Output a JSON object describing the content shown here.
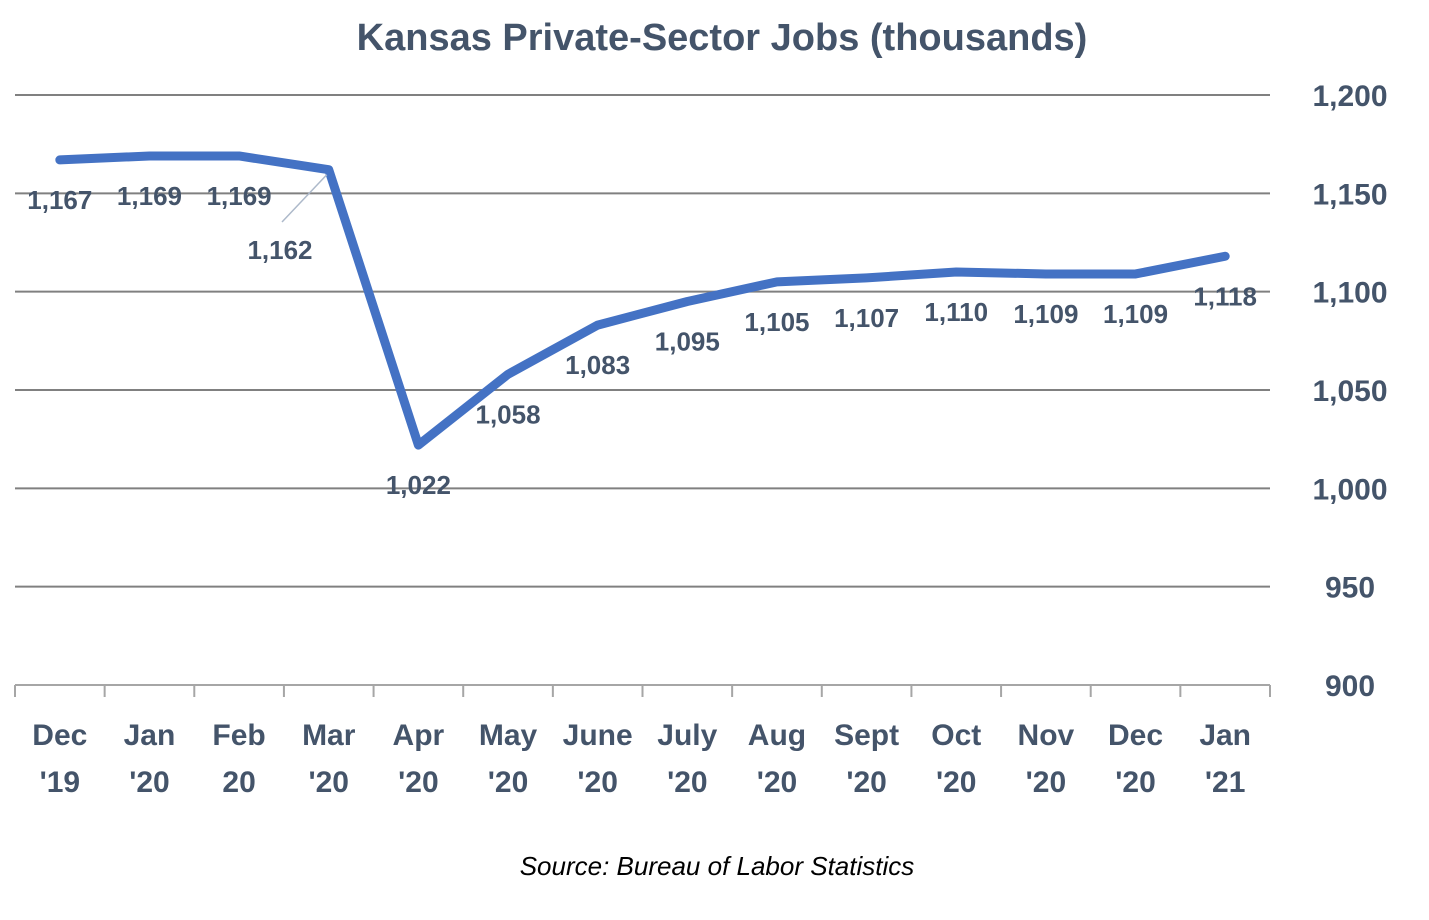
{
  "chart_data": {
    "type": "line",
    "title": "Kansas Private-Sector Jobs (thousands)",
    "source": "Source: Bureau of Labor Statistics",
    "categories": [
      [
        "Dec",
        "'19"
      ],
      [
        "Jan",
        "'20"
      ],
      [
        "Feb",
        "20"
      ],
      [
        "Mar",
        "'20"
      ],
      [
        "Apr",
        "'20"
      ],
      [
        "May",
        "'20"
      ],
      [
        "June",
        "'20"
      ],
      [
        "July",
        "'20"
      ],
      [
        "Aug",
        "'20"
      ],
      [
        "Sept",
        "'20"
      ],
      [
        "Oct",
        "'20"
      ],
      [
        "Nov",
        "'20"
      ],
      [
        "Dec",
        "'20"
      ],
      [
        "Jan",
        "'21"
      ]
    ],
    "values": [
      1167,
      1169,
      1169,
      1162,
      1022,
      1058,
      1083,
      1095,
      1105,
      1107,
      1110,
      1109,
      1109,
      1118
    ],
    "data_labels": [
      "1,167",
      "1,169",
      "1,169",
      "1,162",
      "1,022",
      "1,058",
      "1,083",
      "1,095",
      "1,105",
      "1,107",
      "1,110",
      "1,109",
      "1,109",
      "1,118"
    ],
    "ylim": [
      900,
      1200
    ],
    "yticks": [
      "900",
      "950",
      "1,000",
      "1,050",
      "1,100",
      "1,150",
      "1,200"
    ],
    "y_axis_position": "right",
    "grid": true,
    "line_color": "#4472C4",
    "text_color": "#44546A"
  }
}
